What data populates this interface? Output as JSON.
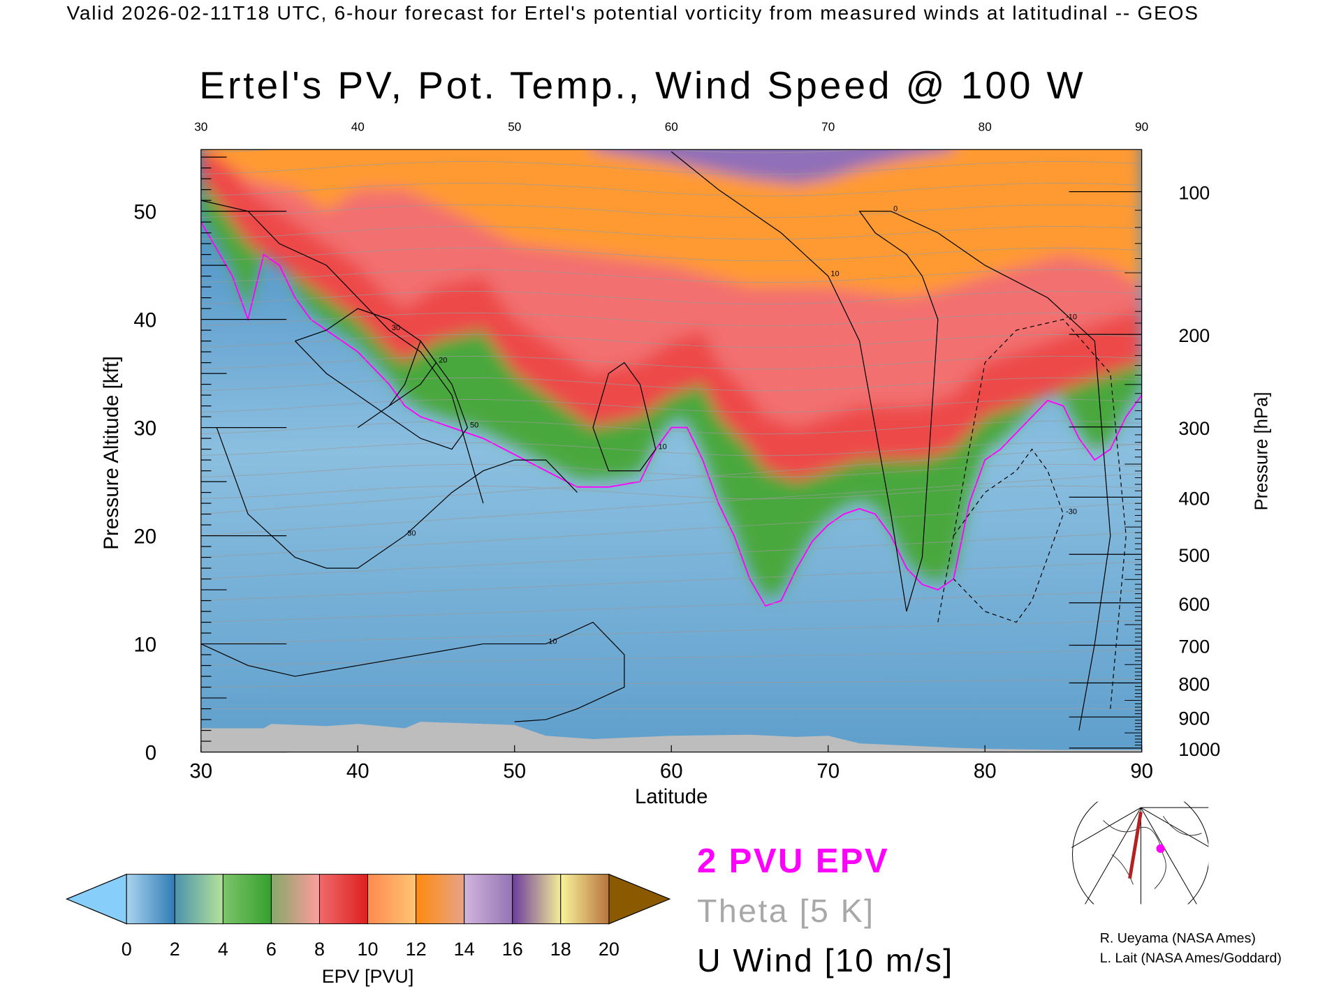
{
  "header": {
    "top_title": "Valid 2026-02-11T18 UTC, 6-hour forecast for Ertel's potential vorticity from measured winds at latitudinal -- GEOS",
    "main_title": "Ertel's PV, Pot. Temp., Wind Speed @ 100 W"
  },
  "chart_data": {
    "type": "heatmap",
    "title": "Ertel's PV, Pot. Temp., Wind Speed @ 100 W",
    "xlabel": "Latitude",
    "ylabel": "Pressure Altitude [kft]",
    "ylabel_right": "Pressure [hPa]",
    "xlim": [
      30,
      90
    ],
    "ylim": [
      0,
      55.7
    ],
    "x_ticks": [
      "30",
      "40",
      "50",
      "60",
      "70",
      "80",
      "90"
    ],
    "x_ticks_values": [
      30,
      40,
      50,
      60,
      70,
      80,
      90
    ],
    "y_ticks": [
      "0",
      "10",
      "20",
      "30",
      "40",
      "50"
    ],
    "y_ticks_values": [
      0,
      10,
      20,
      30,
      40,
      50
    ],
    "right_ticks": [
      "100",
      "200",
      "300",
      "400",
      "500",
      "600",
      "700",
      "800",
      "900",
      "1000"
    ],
    "right_ticks_values": [
      100,
      200,
      300,
      400,
      500,
      600,
      700,
      800,
      900,
      1000
    ],
    "pv_2pvu_line": {
      "lat": [
        30,
        32,
        33,
        34,
        35,
        36,
        37,
        38,
        40,
        42,
        43,
        44,
        46,
        48,
        50,
        52,
        54,
        56,
        58,
        59,
        60,
        61,
        62,
        63,
        64,
        65,
        66,
        67,
        68,
        69,
        70,
        71,
        72,
        73,
        74,
        75,
        76,
        77,
        78,
        79,
        80,
        81,
        82,
        83,
        84,
        85,
        86,
        87,
        88,
        89,
        90
      ],
      "kft": [
        49,
        44,
        40,
        46,
        45,
        42,
        40,
        39,
        37,
        34,
        32,
        31,
        30,
        29,
        27.5,
        26,
        24.5,
        24.5,
        25,
        28,
        30,
        30,
        27,
        23,
        20,
        16,
        13.5,
        14,
        17,
        19.5,
        21,
        22,
        22.5,
        22,
        20,
        17,
        15.5,
        15,
        16,
        23,
        27,
        28,
        29.5,
        31,
        32.5,
        32,
        29,
        27,
        28,
        31,
        33
      ]
    },
    "pv_green_top": {
      "lat": [
        30,
        33,
        35,
        37,
        40,
        42,
        43,
        45,
        48,
        50,
        53,
        55,
        58,
        60,
        62,
        63,
        65,
        66,
        68,
        70,
        72,
        74,
        76,
        78,
        80,
        82,
        84,
        86,
        88,
        90
      ],
      "kft": [
        53,
        47,
        45,
        43,
        40,
        37,
        36,
        38,
        39,
        35,
        32,
        30,
        31,
        33,
        34,
        31,
        28,
        26,
        25,
        26,
        27,
        27,
        27,
        28,
        31,
        32,
        33,
        34,
        35,
        36
      ]
    },
    "pv_red_top": {
      "lat": [
        30,
        33,
        36,
        38,
        40,
        43,
        46,
        50,
        55,
        60,
        65,
        70,
        75,
        78,
        80,
        85,
        88,
        90
      ],
      "kft": [
        56,
        53,
        52,
        50,
        52,
        52,
        50,
        47,
        46,
        45,
        43,
        43,
        42,
        43,
        44,
        46,
        45,
        43
      ]
    },
    "pv_purple_top": {
      "lat": [
        55,
        60,
        65,
        68,
        70,
        72,
        75,
        78
      ],
      "kft": [
        55.7,
        54.5,
        53,
        52.5,
        53,
        54,
        55,
        55.7
      ]
    },
    "terrain_kft": {
      "lat": [
        30,
        34,
        34.5,
        38,
        40,
        43,
        44,
        50,
        52,
        55,
        60,
        65,
        68,
        70,
        72,
        75,
        78,
        80,
        85,
        90
      ],
      "kft": [
        2.2,
        2.2,
        2.6,
        2.4,
        2.6,
        2.2,
        2.8,
        2.5,
        1.5,
        1.2,
        1.5,
        1.6,
        1.4,
        1.5,
        0.8,
        0.6,
        0.4,
        0.3,
        0.2,
        0.2
      ]
    },
    "u_wind_contours_m_s": [
      {
        "label": "30",
        "lat": [
          30,
          33,
          35,
          38,
          40,
          42,
          44,
          46,
          47,
          48
        ],
        "kft": [
          51,
          50,
          47,
          45,
          42,
          39,
          37,
          33,
          28,
          23
        ]
      },
      {
        "label": "10",
        "lat": [
          60,
          63,
          65,
          67,
          70,
          72,
          73,
          74,
          75
        ],
        "kft": [
          55.5,
          52,
          50,
          48,
          44,
          38,
          30,
          22,
          13
        ]
      },
      {
        "label": "20",
        "lat": [
          40,
          42,
          44,
          45,
          44,
          43,
          42
        ],
        "kft": [
          30,
          32,
          34,
          36,
          38,
          34,
          32
        ]
      },
      {
        "label": "50",
        "lat": [
          36,
          38,
          40,
          42,
          44,
          46,
          47,
          46,
          44,
          42,
          40,
          38,
          36
        ],
        "kft": [
          38,
          39,
          41,
          40,
          38,
          34,
          30,
          28,
          29,
          31,
          33,
          35,
          38
        ]
      },
      {
        "label": "30",
        "lat": [
          31,
          33,
          36,
          38,
          40,
          43,
          46,
          48,
          50,
          52,
          54
        ],
        "kft": [
          30,
          22,
          18,
          17,
          17,
          20,
          24,
          26,
          27,
          27,
          24
        ]
      },
      {
        "label": "10",
        "lat": [
          30,
          33,
          36,
          40,
          44,
          48,
          52,
          55,
          57,
          57,
          54,
          52,
          50
        ],
        "kft": [
          10,
          8,
          7,
          8,
          9,
          10,
          10,
          12,
          9,
          6,
          4,
          3,
          2.8
        ]
      },
      {
        "label": "10",
        "lat": [
          55,
          56,
          57,
          58,
          59,
          58,
          56,
          55
        ],
        "kft": [
          30,
          35,
          36,
          34,
          28,
          26,
          26,
          30
        ]
      },
      {
        "label": "0",
        "lat": [
          75,
          76,
          77,
          76,
          75,
          73,
          72,
          74,
          77,
          80,
          84,
          87,
          88,
          87,
          86
        ],
        "kft": [
          13,
          18,
          40,
          44,
          46,
          48,
          50,
          50,
          48,
          45,
          42,
          38,
          20,
          10,
          2
        ]
      },
      {
        "label": "-30",
        "lat": [
          78,
          80,
          82,
          83,
          84,
          85,
          84,
          83,
          82,
          80,
          78
        ],
        "kft": [
          20,
          24,
          26,
          28,
          26,
          22,
          18,
          14,
          12,
          13,
          16
        ]
      },
      {
        "label": "-10",
        "lat": [
          77,
          78,
          80,
          82,
          85,
          88,
          89,
          88
        ],
        "kft": [
          12,
          20,
          36,
          39,
          40,
          35,
          20,
          4
        ]
      }
    ]
  },
  "colorbar": {
    "label": "EPV [PVU]",
    "tick_labels": [
      "0",
      "2",
      "4",
      "6",
      "8",
      "10",
      "12",
      "14",
      "16",
      "18",
      "20"
    ],
    "levels": [
      0,
      2,
      4,
      6,
      8,
      10,
      12,
      14,
      16,
      18,
      20
    ],
    "under_color": "#87cefa",
    "over_color": "#8b5a00",
    "segments": [
      [
        "#a9d4ee",
        "#2f7cb6"
      ],
      [
        "#4c93ad",
        "#b4e29a"
      ],
      [
        "#7cc46a",
        "#35a02e"
      ],
      [
        "#84a86a",
        "#ff9c9c"
      ],
      [
        "#f06a6a",
        "#de1f1f"
      ],
      [
        "#ff8a50",
        "#ffc474"
      ],
      [
        "#ff8a0e",
        "#e6a488"
      ],
      [
        "#d2b4dc",
        "#9474b4"
      ],
      [
        "#6c3c9c",
        "#f4ec98"
      ],
      [
        "#f8f49c",
        "#b8743c"
      ]
    ]
  },
  "legend": {
    "pv_line": "2 PVU EPV",
    "theta": "Theta [5 K]",
    "u_wind": "U Wind [10 m/s]",
    "pv_line_color": "#ff00ff",
    "theta_color": "#a8a8a8"
  },
  "credits": {
    "line1": "R. Ueyama (NASA Ames)",
    "line2": "L. Lait (NASA Ames/Goddard)"
  }
}
